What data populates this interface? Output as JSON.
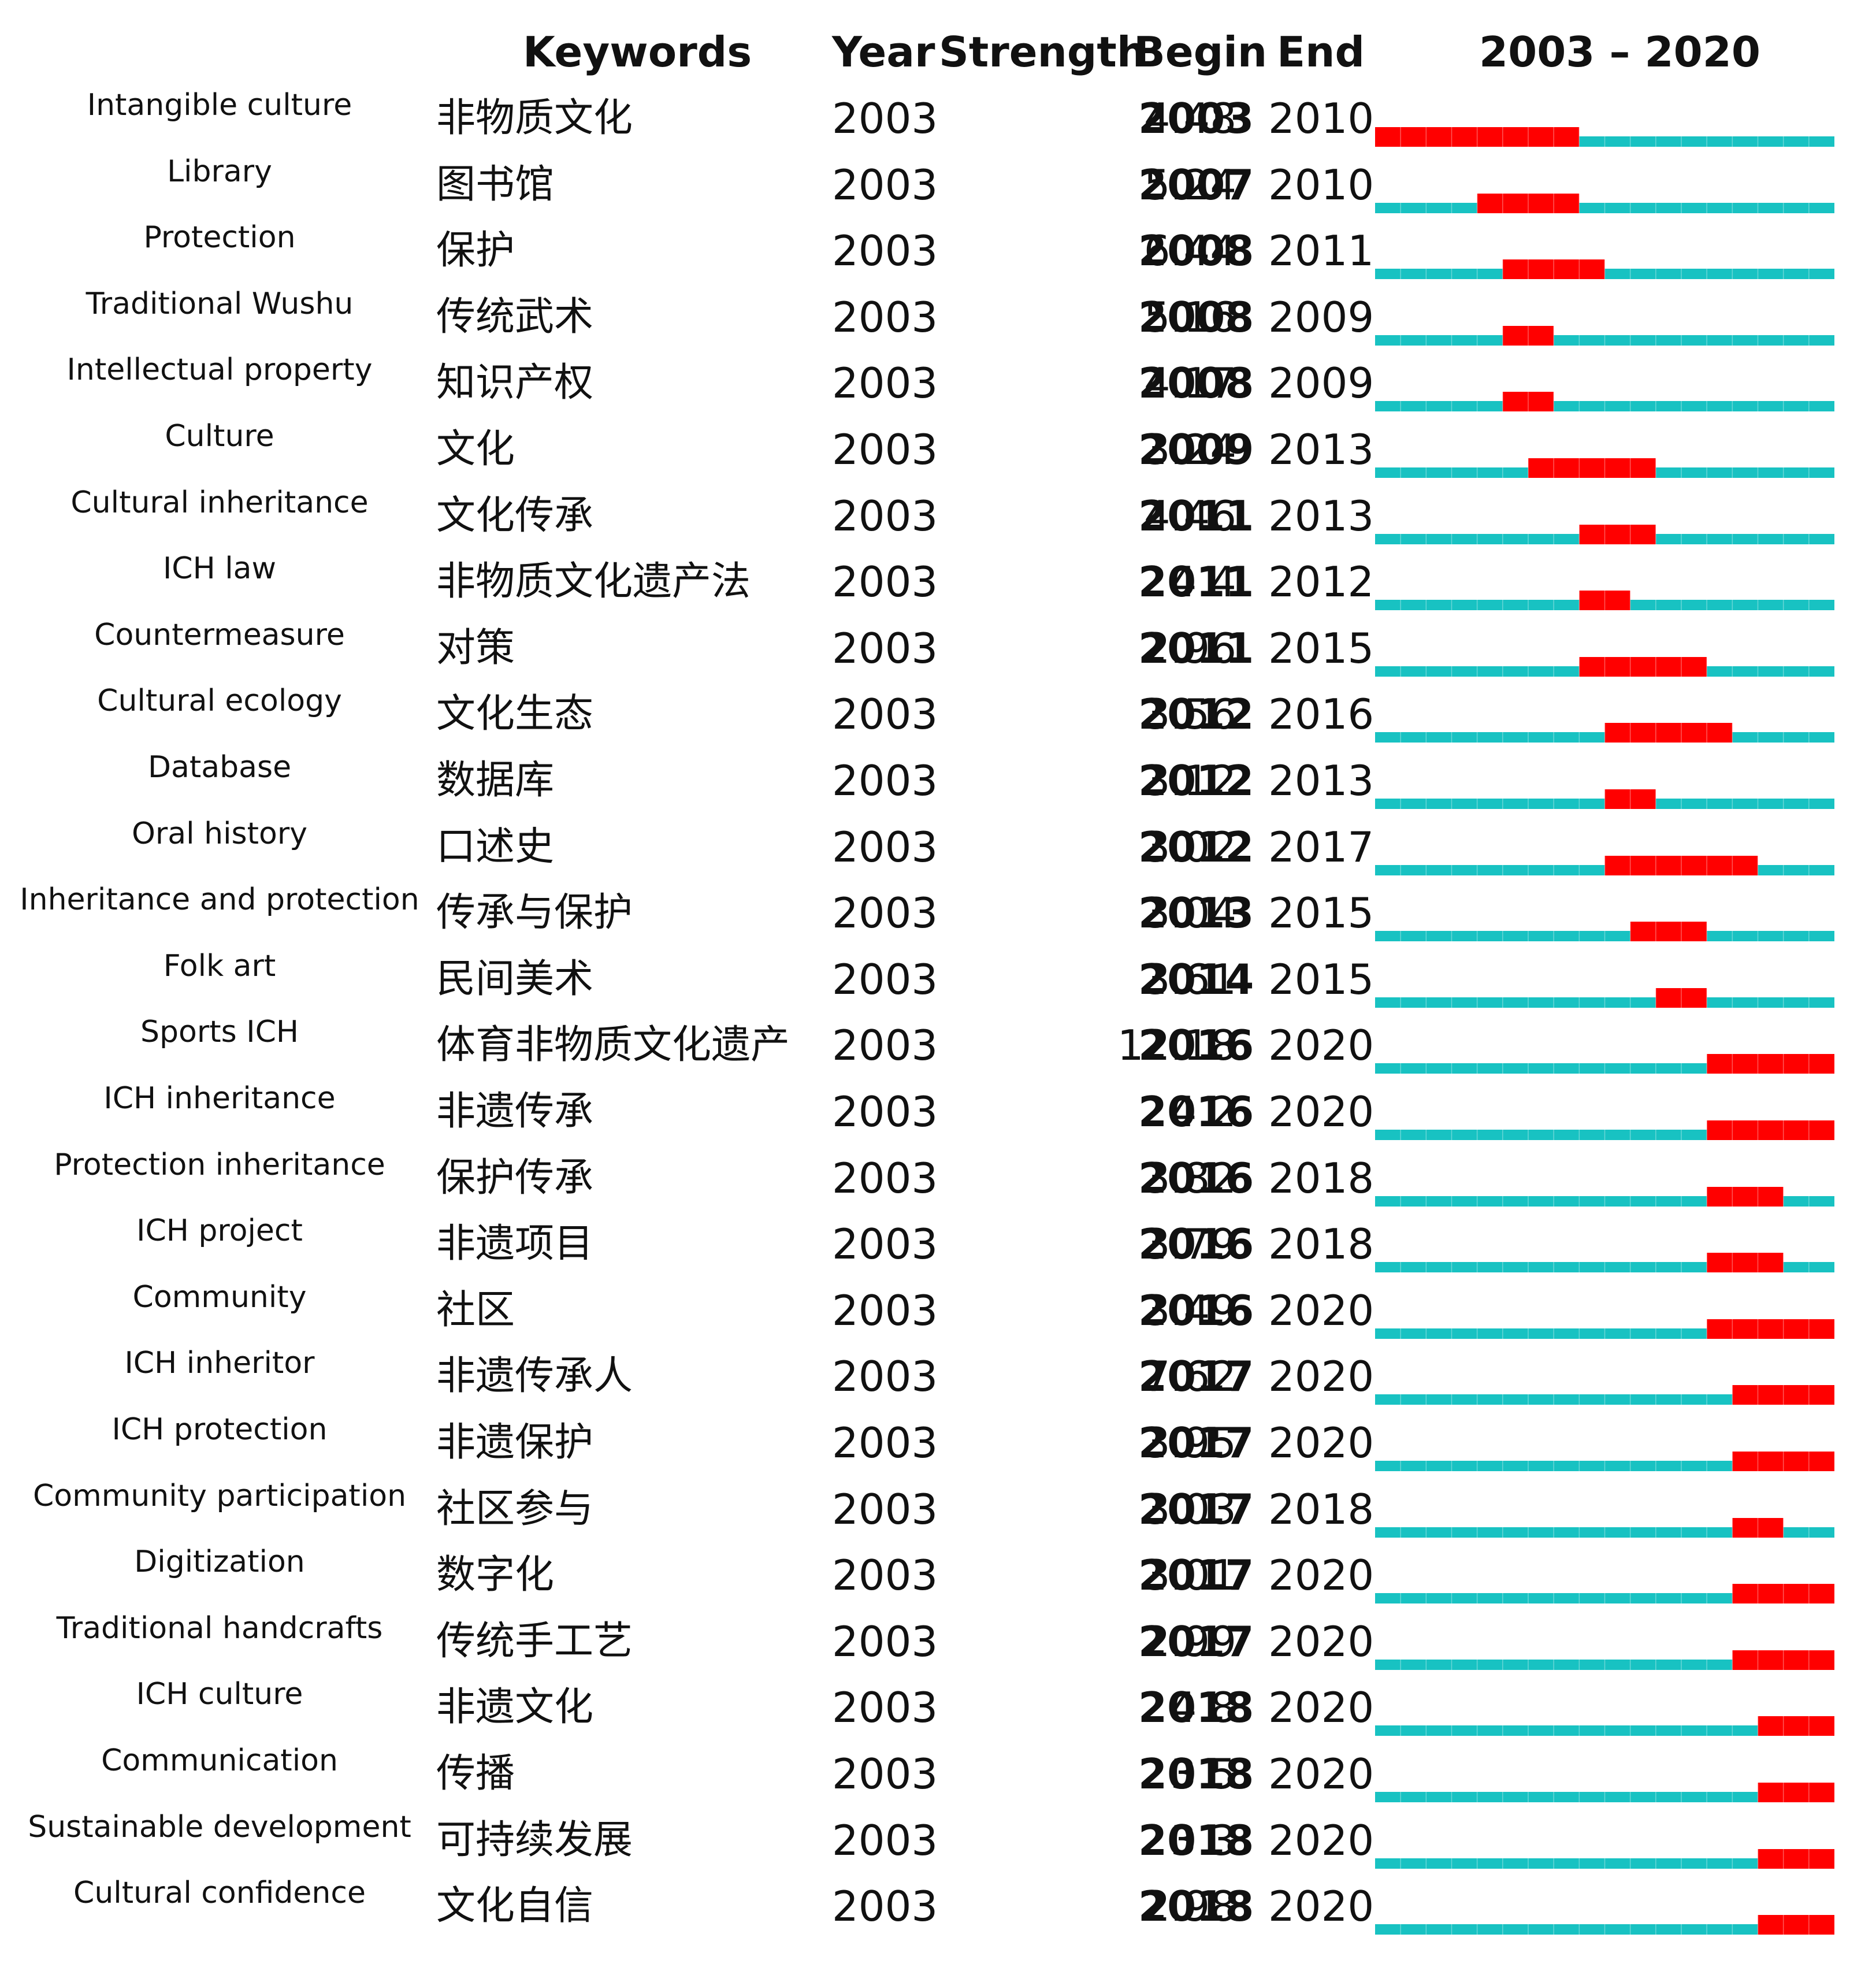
{
  "chart_data": {
    "type": "table",
    "headers": {
      "keywords": "Keywords",
      "year": "Year",
      "strength": "Strength",
      "begin": "Begin",
      "end": "End",
      "range": "2003 – 2020"
    },
    "range": [
      2003,
      2020
    ],
    "colors": {
      "base": "#18c2c2",
      "burst": "#ff0000"
    },
    "rows": [
      {
        "en": "Intangible culture",
        "zh": "非物质文化",
        "year": "2003",
        "strength": "4.48",
        "begin": "2003",
        "end": "2010"
      },
      {
        "en": "Library",
        "zh": "图书馆",
        "year": "2003",
        "strength": "5.24",
        "begin": "2007",
        "end": "2010"
      },
      {
        "en": "Protection",
        "zh": "保护",
        "year": "2003",
        "strength": "6.44",
        "begin": "2008",
        "end": "2011"
      },
      {
        "en": "Traditional Wushu",
        "zh": "传统武术",
        "year": "2003",
        "strength": "5.16",
        "begin": "2008",
        "end": "2009"
      },
      {
        "en": "Intellectual property",
        "zh": "知识产权",
        "year": "2003",
        "strength": "4.17",
        "begin": "2008",
        "end": "2009"
      },
      {
        "en": "Culture",
        "zh": "文化",
        "year": "2003",
        "strength": "3.24",
        "begin": "2009",
        "end": "2013"
      },
      {
        "en": "Cultural inheritance",
        "zh": "文化传承",
        "year": "2003",
        "strength": "4.46",
        "begin": "2011",
        "end": "2013"
      },
      {
        "en": "ICH law",
        "zh": "非物质文化遗产法",
        "year": "2003",
        "strength": "4.4",
        "begin": "2011",
        "end": "2012"
      },
      {
        "en": "Countermeasure",
        "zh": "对策",
        "year": "2003",
        "strength": "2.96",
        "begin": "2011",
        "end": "2015"
      },
      {
        "en": "Cultural ecology",
        "zh": "文化生态",
        "year": "2003",
        "strength": "3.56",
        "begin": "2012",
        "end": "2016"
      },
      {
        "en": "Database",
        "zh": "数据库",
        "year": "2003",
        "strength": "3.12",
        "begin": "2012",
        "end": "2013"
      },
      {
        "en": "Oral history",
        "zh": "口述史",
        "year": "2003",
        "strength": "3.02",
        "begin": "2012",
        "end": "2017"
      },
      {
        "en": "Inheritance and protection",
        "zh": "传承与保护",
        "year": "2003",
        "strength": "3.04",
        "begin": "2013",
        "end": "2015"
      },
      {
        "en": "Folk art",
        "zh": "民间美术",
        "year": "2003",
        "strength": "3.61",
        "begin": "2014",
        "end": "2015"
      },
      {
        "en": "Sports ICH",
        "zh": "体育非物质文化遗产",
        "year": "2003",
        "strength": "12.18",
        "begin": "2016",
        "end": "2020"
      },
      {
        "en": "ICH inheritance",
        "zh": "非遗传承",
        "year": "2003",
        "strength": "4.2",
        "begin": "2016",
        "end": "2020"
      },
      {
        "en": "Protection inheritance",
        "zh": "保护传承",
        "year": "2003",
        "strength": "3.82",
        "begin": "2016",
        "end": "2018"
      },
      {
        "en": "ICH project",
        "zh": "非遗项目",
        "year": "2003",
        "strength": "3.79",
        "begin": "2016",
        "end": "2018"
      },
      {
        "en": "Community",
        "zh": "社区",
        "year": "2003",
        "strength": "3.49",
        "begin": "2016",
        "end": "2020"
      },
      {
        "en": "ICH inheritor",
        "zh": "非遗传承人",
        "year": "2003",
        "strength": "7.62",
        "begin": "2017",
        "end": "2020"
      },
      {
        "en": "ICH protection",
        "zh": "非遗保护",
        "year": "2003",
        "strength": "3.95",
        "begin": "2017",
        "end": "2020"
      },
      {
        "en": "Community participation",
        "zh": "社区参与",
        "year": "2003",
        "strength": "3.03",
        "begin": "2017",
        "end": "2018"
      },
      {
        "en": "Digitization",
        "zh": "数字化",
        "year": "2003",
        "strength": "3.01",
        "begin": "2017",
        "end": "2020"
      },
      {
        "en": "Traditional handcrafts",
        "zh": "传统手工艺",
        "year": "2003",
        "strength": "2.99",
        "begin": "2017",
        "end": "2020"
      },
      {
        "en": "ICH culture",
        "zh": "非遗文化",
        "year": "2003",
        "strength": "4.8",
        "begin": "2018",
        "end": "2020"
      },
      {
        "en": "Communication",
        "zh": "传播",
        "year": "2003",
        "strength": "3.5",
        "begin": "2018",
        "end": "2020"
      },
      {
        "en": "Sustainable development",
        "zh": "可持续发展",
        "year": "2003",
        "strength": "3.3",
        "begin": "2018",
        "end": "2020"
      },
      {
        "en": "Cultural confidence",
        "zh": "文化自信",
        "year": "2003",
        "strength": "2.98",
        "begin": "2018",
        "end": "2020"
      }
    ]
  }
}
